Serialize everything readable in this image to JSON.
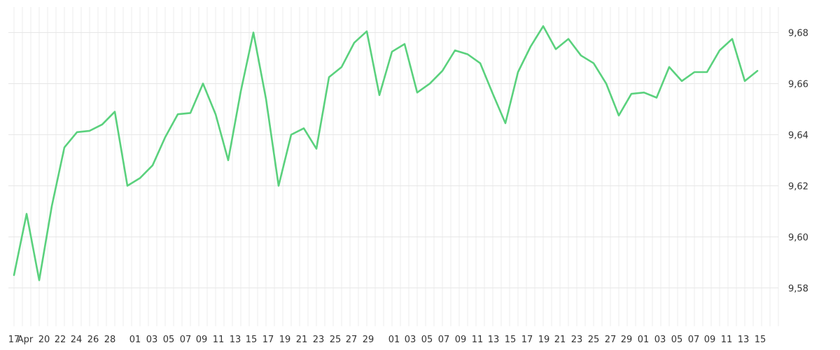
{
  "chart_data": {
    "type": "line",
    "title": "",
    "xlabel": "",
    "ylabel": "",
    "ylim": [
      9.565,
      9.69
    ],
    "y_ticks": [
      9.58,
      9.6,
      9.62,
      9.64,
      9.66,
      9.68
    ],
    "y_tick_labels": [
      "9,58",
      "9,60",
      "9,62",
      "9,64",
      "9,66",
      "9,68"
    ],
    "x_tick_labels": [
      "17",
      "Apr",
      "20",
      "22",
      "24",
      "26",
      "28",
      "01",
      "03",
      "05",
      "07",
      "09",
      "11",
      "13",
      "15",
      "17",
      "19",
      "21",
      "23",
      "25",
      "27",
      "29",
      "01",
      "03",
      "05",
      "07",
      "09",
      "11",
      "13",
      "15",
      "17",
      "19",
      "21",
      "23",
      "25",
      "27",
      "29",
      "01",
      "03",
      "05",
      "07",
      "09",
      "11",
      "13",
      "15"
    ],
    "grid": true,
    "legend": "none",
    "line_color": "#5ad17d",
    "series": [
      {
        "values": [
          9.585,
          9.609,
          9.583,
          9.612,
          9.635,
          9.641,
          9.6415,
          9.644,
          9.649,
          9.62,
          9.623,
          9.628,
          9.639,
          9.648,
          9.6485,
          9.66,
          9.648,
          9.63,
          9.657,
          9.68,
          9.654,
          9.62,
          9.64,
          9.6425,
          9.6345,
          9.6625,
          9.6665,
          9.676,
          9.6805,
          9.6555,
          9.6725,
          9.6755,
          9.6565,
          9.66,
          9.665,
          9.673,
          9.6715,
          9.668,
          9.656,
          9.6445,
          9.6645,
          9.6745,
          9.6825,
          9.6735,
          9.6775,
          9.671,
          9.668,
          9.66,
          9.6475,
          9.656,
          9.6565,
          9.6545,
          9.6665,
          9.661,
          9.6645,
          9.6645,
          9.673,
          9.6775,
          9.661,
          9.665
        ]
      }
    ]
  }
}
